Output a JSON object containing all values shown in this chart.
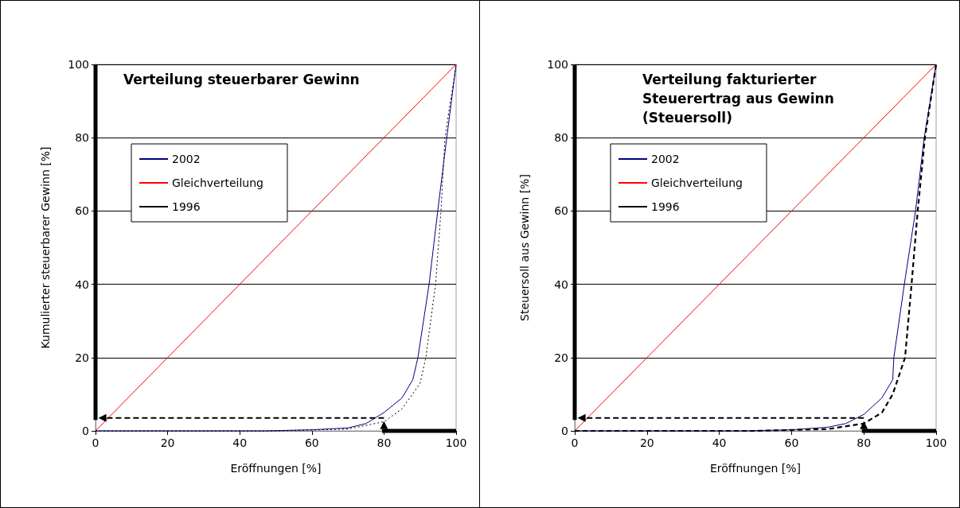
{
  "chart_data": [
    {
      "type": "line",
      "title": "Verteilung steuerbarer Gewinn",
      "xlabel": "Eröffnungen [%]",
      "ylabel": "Kumulierter steuerbarer Gewinn [%]",
      "xlim": [
        0,
        100
      ],
      "ylim": [
        0,
        100
      ],
      "xticks": [
        0,
        20,
        40,
        60,
        80,
        100
      ],
      "yticks": [
        0,
        20,
        40,
        60,
        80,
        100
      ],
      "grid": "y",
      "legend": "top left",
      "marker": "none",
      "series": [
        {
          "name": "2002",
          "color": "#000080",
          "line_style": "solid",
          "x": [
            0,
            47,
            60,
            70,
            75,
            80,
            85,
            88,
            89.4,
            92.5,
            94.9,
            97.4,
            100
          ],
          "values": [
            0,
            0,
            0.3,
            0.8,
            2,
            5,
            9,
            14,
            20,
            40,
            60,
            80,
            100
          ]
        },
        {
          "name": "Gleichverteilung",
          "color": "#ff0000",
          "line_style": "solid",
          "x": [
            0,
            100
          ],
          "values": [
            0,
            100
          ]
        },
        {
          "name": "1996",
          "color": "#000000",
          "line_style": "dotted",
          "x": [
            0,
            50.5,
            70,
            80,
            85,
            90,
            91.6,
            94.3,
            95.8,
            96.9,
            100
          ],
          "values": [
            0,
            0,
            0.5,
            2.5,
            6,
            13,
            20,
            40,
            60,
            80,
            100
          ]
        }
      ]
    },
    {
      "type": "line",
      "title": "Verteilung fakturierter Steuerertrag aus Gewinn (Steuersoll)",
      "xlabel": "Eröffnungen [%]",
      "ylabel": "Steuersoll aus Gewinn [%]",
      "xlim": [
        0,
        100
      ],
      "ylim": [
        0,
        100
      ],
      "xticks": [
        0,
        20,
        40,
        60,
        80,
        100
      ],
      "yticks": [
        0,
        20,
        40,
        60,
        80,
        100
      ],
      "grid": "y",
      "legend": "top left",
      "marker": "none",
      "series": [
        {
          "name": "2002",
          "color": "#000080",
          "line_style": "solid",
          "x": [
            0,
            47,
            60,
            70,
            75,
            80,
            85,
            88,
            88.3,
            91.2,
            94.3,
            96.7,
            100
          ],
          "values": [
            0,
            0,
            0.3,
            1,
            2,
            4.5,
            9,
            14,
            20,
            40,
            60,
            80,
            100
          ]
        },
        {
          "name": "Gleichverteilung",
          "color": "#ff0000",
          "line_style": "solid",
          "x": [
            0,
            100
          ],
          "values": [
            0,
            100
          ]
        },
        {
          "name": "1996",
          "color": "#000000",
          "line_style": "dashed",
          "x": [
            0,
            50,
            70,
            80,
            85,
            88,
            91.4,
            93.2,
            94.9,
            96.9,
            100
          ],
          "values": [
            0,
            0,
            0.5,
            2,
            5,
            10,
            20,
            40,
            60,
            80,
            100
          ]
        }
      ]
    }
  ]
}
